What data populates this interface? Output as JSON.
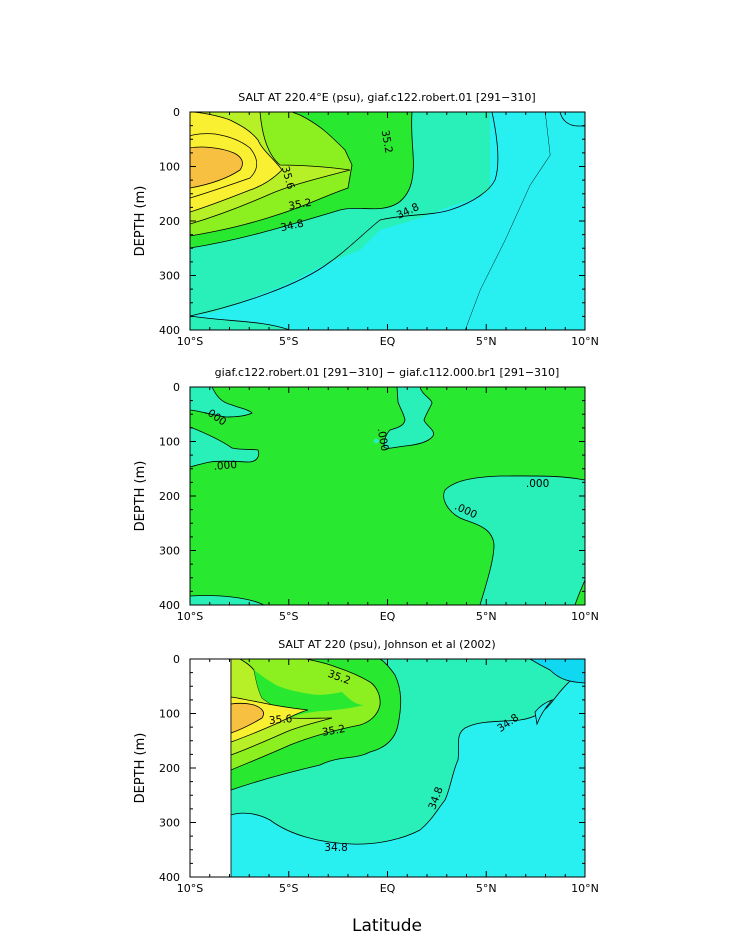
{
  "figure": {
    "xlabel": "Latitude",
    "x_tick_labels": [
      "10°S",
      "5°S",
      "EQ",
      "5°N",
      "10°N"
    ],
    "y_tick_labels": [
      "0",
      "100",
      "200",
      "300",
      "400"
    ],
    "ylabel": "DEPTH (m)"
  },
  "colors": {
    "orange": "#f8c040",
    "yellow": "#f8f030",
    "yellowgreen": "#b8f028",
    "lightgreen": "#8cf020",
    "green": "#28e830",
    "aquagreen": "#28f0b8",
    "cyan": "#28f0f0",
    "darkcyan": "#10d8f0"
  },
  "chart_data": [
    {
      "type": "contour",
      "title": "SALT AT 220.4°E (psu), giaf.c122.robert.01 [291−310]",
      "xlabel": "",
      "ylabel": "DEPTH (m)",
      "xlim": [
        -10,
        10
      ],
      "ylim": [
        400,
        0
      ],
      "units": "psu",
      "contour_levels": [
        34.8,
        35.0,
        35.2,
        35.4,
        35.6
      ],
      "contour_labels": [
        {
          "text": "35.2",
          "lat": -0.2,
          "depth": 48,
          "angle": 80
        },
        {
          "text": "35.6",
          "lat": -5.2,
          "depth": 115,
          "angle": 75
        },
        {
          "text": "35.2",
          "lat": -4.4,
          "depth": 168,
          "angle": -10
        },
        {
          "text": "34.8",
          "lat": -4.8,
          "depth": 207,
          "angle": -12
        },
        {
          "text": "34.8",
          "lat": 1.1,
          "depth": 180,
          "angle": -25
        }
      ]
    },
    {
      "type": "contour",
      "title": "giaf.c122.robert.01 [291−310] − giaf.c112.000.br1 [291−310]",
      "xlabel": "",
      "ylabel": "DEPTH (m)",
      "xlim": [
        -10,
        10
      ],
      "ylim": [
        400,
        0
      ],
      "contour_levels": [
        0.0
      ],
      "contour_labels": [
        {
          "text": ".000",
          "lat": -8.8,
          "depth": 52,
          "angle": 35
        },
        {
          "text": ".000",
          "lat": -8.2,
          "depth": 143,
          "angle": -5
        },
        {
          "text": ".000",
          "lat": -0.4,
          "depth": 90,
          "angle": 80
        },
        {
          "text": ".000",
          "lat": 3.9,
          "depth": 225,
          "angle": 25
        },
        {
          "text": ".000",
          "lat": 7.6,
          "depth": 176,
          "angle": 0
        }
      ]
    },
    {
      "type": "contour",
      "title": "SALT AT 220 (psu), Johnson et al (2002)",
      "xlabel": "Latitude",
      "ylabel": "DEPTH (m)",
      "xlim": [
        -10,
        10
      ],
      "ylim": [
        400,
        0
      ],
      "units": "psu",
      "contour_levels": [
        34.8,
        35.0,
        35.2,
        35.4,
        35.6
      ],
      "contour_labels": [
        {
          "text": "35.2",
          "lat": -2.5,
          "depth": 32,
          "angle": 20
        },
        {
          "text": "35.6",
          "lat": -5.4,
          "depth": 110,
          "angle": -5
        },
        {
          "text": "35.2",
          "lat": -2.7,
          "depth": 130,
          "angle": -10
        },
        {
          "text": "34.8",
          "lat": 6.2,
          "depth": 115,
          "angle": -35
        },
        {
          "text": "34.8",
          "lat": 2.6,
          "depth": 250,
          "angle": -70
        },
        {
          "text": "34.8",
          "lat": -2.6,
          "depth": 345,
          "angle": 0
        }
      ]
    }
  ]
}
